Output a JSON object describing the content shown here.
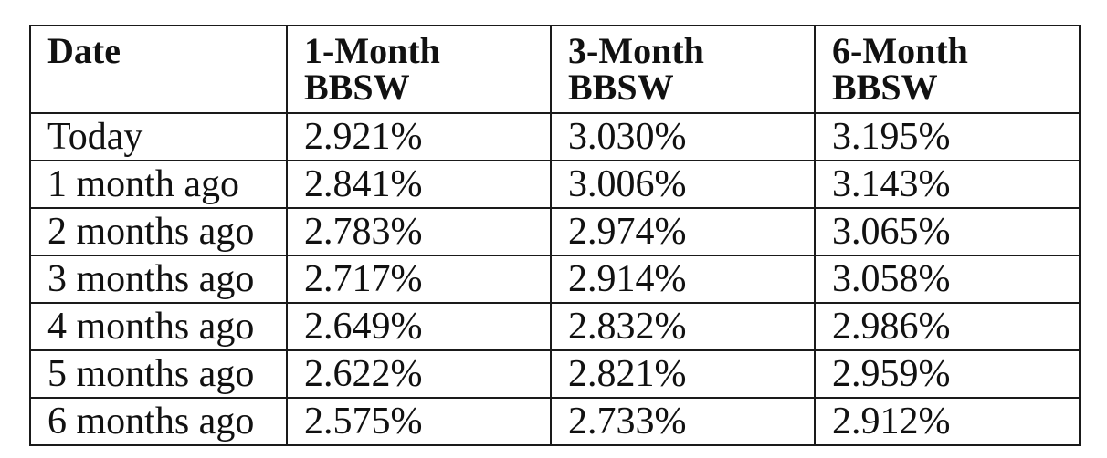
{
  "table": {
    "headers": [
      {
        "line1": "Date",
        "line2": ""
      },
      {
        "line1": "1-Month",
        "line2": "BBSW"
      },
      {
        "line1": "3-Month",
        "line2": "BBSW"
      },
      {
        "line1": "6-Month",
        "line2": "BBSW"
      }
    ],
    "rows": [
      {
        "date": "Today",
        "m1": "2.921%",
        "m3": "3.030%",
        "m6": "3.195%"
      },
      {
        "date": "1 month ago",
        "m1": "2.841%",
        "m3": "3.006%",
        "m6": "3.143%"
      },
      {
        "date": "2 months ago",
        "m1": "2.783%",
        "m3": "2.974%",
        "m6": "3.065%"
      },
      {
        "date": "3 months ago",
        "m1": "2.717%",
        "m3": "2.914%",
        "m6": "3.058%"
      },
      {
        "date": "4 months ago",
        "m1": "2.649%",
        "m3": "2.832%",
        "m6": "2.986%"
      },
      {
        "date": "5 months ago",
        "m1": "2.622%",
        "m3": "2.821%",
        "m6": "2.959%"
      },
      {
        "date": "6 months ago",
        "m1": "2.575%",
        "m3": "2.733%",
        "m6": "2.912%"
      }
    ]
  }
}
